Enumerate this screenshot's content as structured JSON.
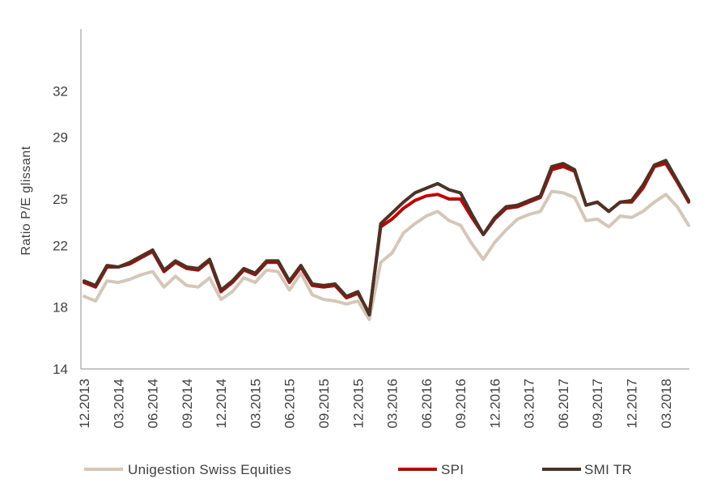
{
  "chart_data": {
    "type": "line",
    "title": "",
    "xlabel": "",
    "ylabel": "Ratio P/E glissant",
    "ylim": [
      14,
      36
    ],
    "yticks": [
      14,
      18,
      22,
      25,
      29,
      32
    ],
    "ytick_labels": [
      "14",
      "18",
      "22",
      "25",
      "29",
      "32"
    ],
    "x": [
      "12.2013",
      "01.2014",
      "02.2014",
      "03.2014",
      "04.2014",
      "05.2014",
      "06.2014",
      "07.2014",
      "08.2014",
      "09.2014",
      "10.2014",
      "11.2014",
      "12.2014",
      "01.2015",
      "02.2015",
      "03.2015",
      "04.2015",
      "05.2015",
      "06.2015",
      "07.2015",
      "08.2015",
      "09.2015",
      "10.2015",
      "11.2015",
      "12.2015",
      "01.2016",
      "02.2016",
      "03.2016",
      "04.2016",
      "05.2016",
      "06.2016",
      "07.2016",
      "08.2016",
      "09.2016",
      "10.2016",
      "11.2016",
      "12.2016",
      "01.2017",
      "02.2017",
      "03.2017",
      "04.2017",
      "05.2017",
      "06.2017",
      "07.2017",
      "08.2017",
      "09.2017",
      "10.2017",
      "11.2017",
      "12.2017",
      "01.2018",
      "02.2018",
      "03.2018",
      "04.2018",
      "05.2018"
    ],
    "xtick_labels": [
      "12.2013",
      "03.2014",
      "06.2014",
      "09.2014",
      "12.2014",
      "03.2015",
      "06.2015",
      "09.2015",
      "12.2015",
      "03.2016",
      "06.2016",
      "09.2016",
      "12.2016",
      "03.2017",
      "06.2017",
      "09.2017",
      "12.2017",
      "03.2018"
    ],
    "xtick_every": 3,
    "grid": false,
    "legend_position": "bottom",
    "series": [
      {
        "name": "Unigestion Swiss Equities",
        "color": "#d5c7b8",
        "values": [
          18.7,
          18.4,
          19.7,
          19.6,
          19.8,
          20.1,
          20.3,
          19.3,
          20.0,
          19.4,
          19.3,
          19.9,
          18.5,
          19.0,
          19.9,
          19.6,
          20.4,
          20.3,
          19.1,
          20.2,
          18.8,
          18.5,
          18.4,
          18.2,
          18.4,
          17.2,
          20.9,
          21.5,
          22.8,
          23.4,
          23.9,
          24.2,
          23.6,
          23.3,
          22.1,
          21.1,
          22.2,
          23.0,
          23.7,
          24.0,
          24.2,
          25.5,
          25.4,
          25.1,
          23.6,
          23.7,
          23.2,
          23.9,
          23.8,
          24.2,
          24.8,
          25.3,
          24.5,
          23.3
        ]
      },
      {
        "name": "SPI",
        "color": "#c00000",
        "values": [
          19.6,
          19.3,
          20.6,
          20.6,
          20.8,
          21.2,
          21.6,
          20.3,
          20.9,
          20.5,
          20.4,
          21.0,
          19.0,
          19.6,
          20.4,
          20.1,
          20.9,
          20.9,
          19.6,
          20.6,
          19.4,
          19.3,
          19.4,
          18.6,
          18.9,
          17.6,
          23.2,
          23.7,
          24.4,
          24.9,
          25.2,
          25.3,
          25.0,
          25.0,
          23.8,
          22.7,
          23.7,
          24.4,
          24.5,
          24.8,
          25.1,
          26.9,
          27.1,
          26.8,
          24.6,
          24.8,
          24.2,
          24.8,
          24.8,
          25.7,
          27.1,
          27.3,
          26.1,
          24.8
        ]
      },
      {
        "name": "SMI TR",
        "color": "#4a3326",
        "values": [
          19.7,
          19.4,
          20.7,
          20.6,
          20.9,
          21.3,
          21.7,
          20.4,
          21.0,
          20.6,
          20.5,
          21.1,
          19.1,
          19.7,
          20.5,
          20.2,
          21.0,
          21.0,
          19.7,
          20.7,
          19.5,
          19.4,
          19.5,
          18.7,
          19.0,
          17.5,
          23.4,
          24.1,
          24.8,
          25.4,
          25.7,
          26.0,
          25.6,
          25.4,
          24.0,
          22.7,
          23.8,
          24.5,
          24.6,
          24.9,
          25.2,
          27.1,
          27.3,
          26.9,
          24.6,
          24.8,
          24.2,
          24.8,
          24.9,
          25.9,
          27.2,
          27.5,
          26.2,
          24.9
        ]
      }
    ]
  }
}
